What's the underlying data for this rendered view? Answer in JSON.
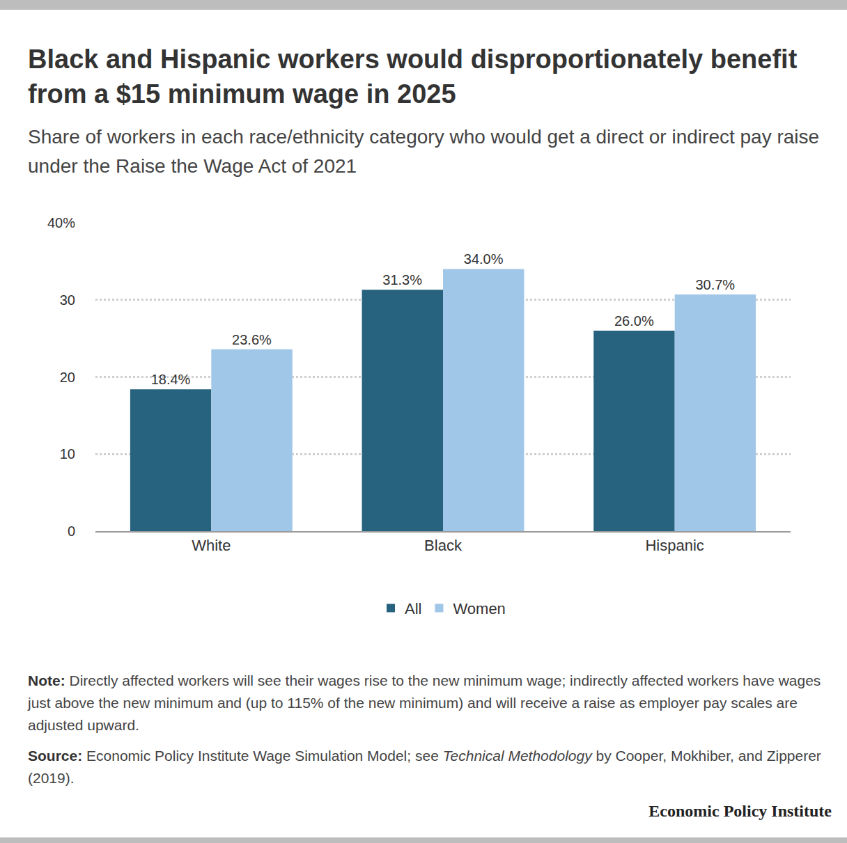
{
  "chart_data": {
    "type": "bar",
    "title": "Black and Hispanic workers would disproportionately benefit from a $15 minimum wage in 2025",
    "subtitle": "Share of workers in each race/ethnicity category who would get a direct or indirect pay raise under the Raise the Wage Act of 2021",
    "categories": [
      "White",
      "Black",
      "Hispanic"
    ],
    "series": [
      {
        "name": "All",
        "color": "#27627f",
        "values": [
          18.4,
          31.3,
          26.0
        ],
        "value_labels": [
          "18.4%",
          "31.3%",
          "26.0%"
        ]
      },
      {
        "name": "Women",
        "color": "#a0c6e8",
        "values": [
          23.6,
          34.0,
          30.7
        ],
        "value_labels": [
          "23.6%",
          "34.0%",
          "30.7%"
        ]
      }
    ],
    "ylim": [
      0,
      40
    ],
    "yticks": [
      0,
      10,
      20,
      30,
      {
        "value": 40,
        "label": "40%"
      }
    ],
    "grid": true,
    "data_labels": true,
    "legend": "bottom",
    "annotations": [
      {
        "label": "Note:",
        "parts": [
          {
            "text": " Directly affected workers will see their wages rise to the new minimum wage; indirectly affected workers have wages just above the new minimum and (up to 115% of the new minimum) and will receive a raise as employer pay scales are adjusted upward."
          }
        ]
      },
      {
        "label": "Source:",
        "parts": [
          {
            "text": " Economic Policy Institute Wage Simulation Model; see "
          },
          {
            "text": "Technical Methodology",
            "italic": true
          },
          {
            "text": " by Cooper, Mokhiber, and Zipperer (2019)."
          }
        ]
      }
    ],
    "credit": "Economic Policy Institute"
  }
}
